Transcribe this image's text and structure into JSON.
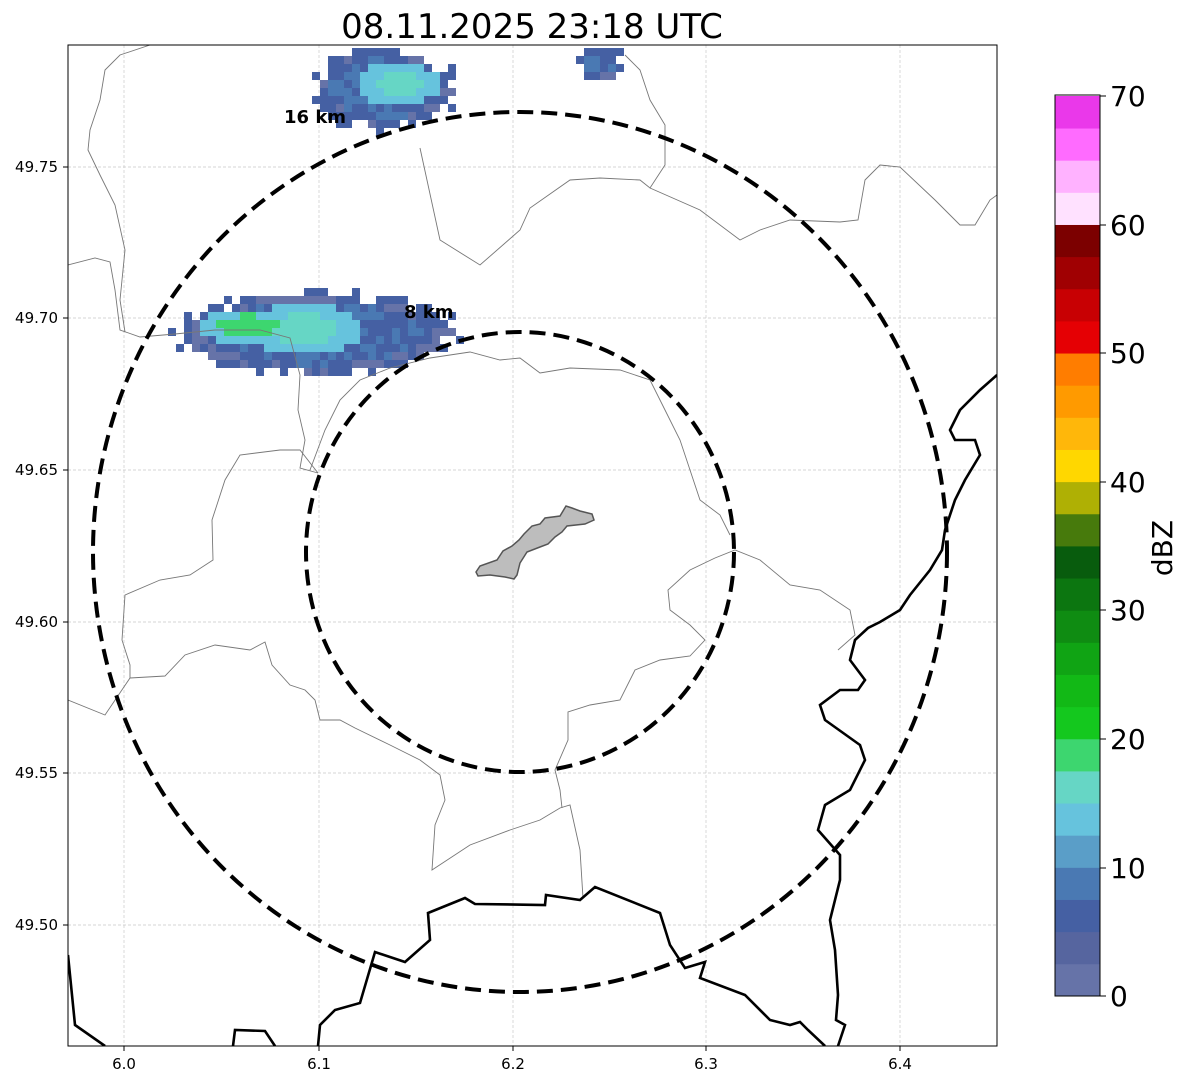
{
  "title": "08.11.2025 23:18 UTC",
  "map": {
    "x_ticks": [
      "6.0",
      "6.1",
      "6.2",
      "6.3",
      "6.4"
    ],
    "y_ticks": [
      "49.75",
      "49.70",
      "49.65",
      "49.60",
      "49.55",
      "49.50"
    ],
    "xlim": [
      5.97,
      6.45
    ],
    "ylim": [
      49.46,
      49.79
    ],
    "grid": true,
    "radar_center": [
      6.203,
      49.623
    ],
    "range_rings": [
      {
        "label": "8 km"
      },
      {
        "label": "16 km"
      }
    ]
  },
  "colorbar": {
    "label": "dBZ",
    "tick_labels": [
      "70",
      "60",
      "50",
      "40",
      "30",
      "20",
      "10",
      "0"
    ],
    "range": [
      0,
      70
    ],
    "colors": [
      "#6673a8",
      "#56659f",
      "#4560a3",
      "#4a79b3",
      "#5a9ec8",
      "#66c3dd",
      "#66d6c5",
      "#3dd66f",
      "#14c81e",
      "#12b916",
      "#10a414",
      "#0f8c12",
      "#0c7610",
      "#085c0d",
      "#477a0c",
      "#afb004",
      "#ffd700",
      "#ffb70a",
      "#ff9a00",
      "#ff7d00",
      "#e50004",
      "#c80003",
      "#a00002",
      "#7c0000",
      "#ffe1ff",
      "#ffb2ff",
      "#ff6bff",
      "#ea38ea"
    ]
  }
}
